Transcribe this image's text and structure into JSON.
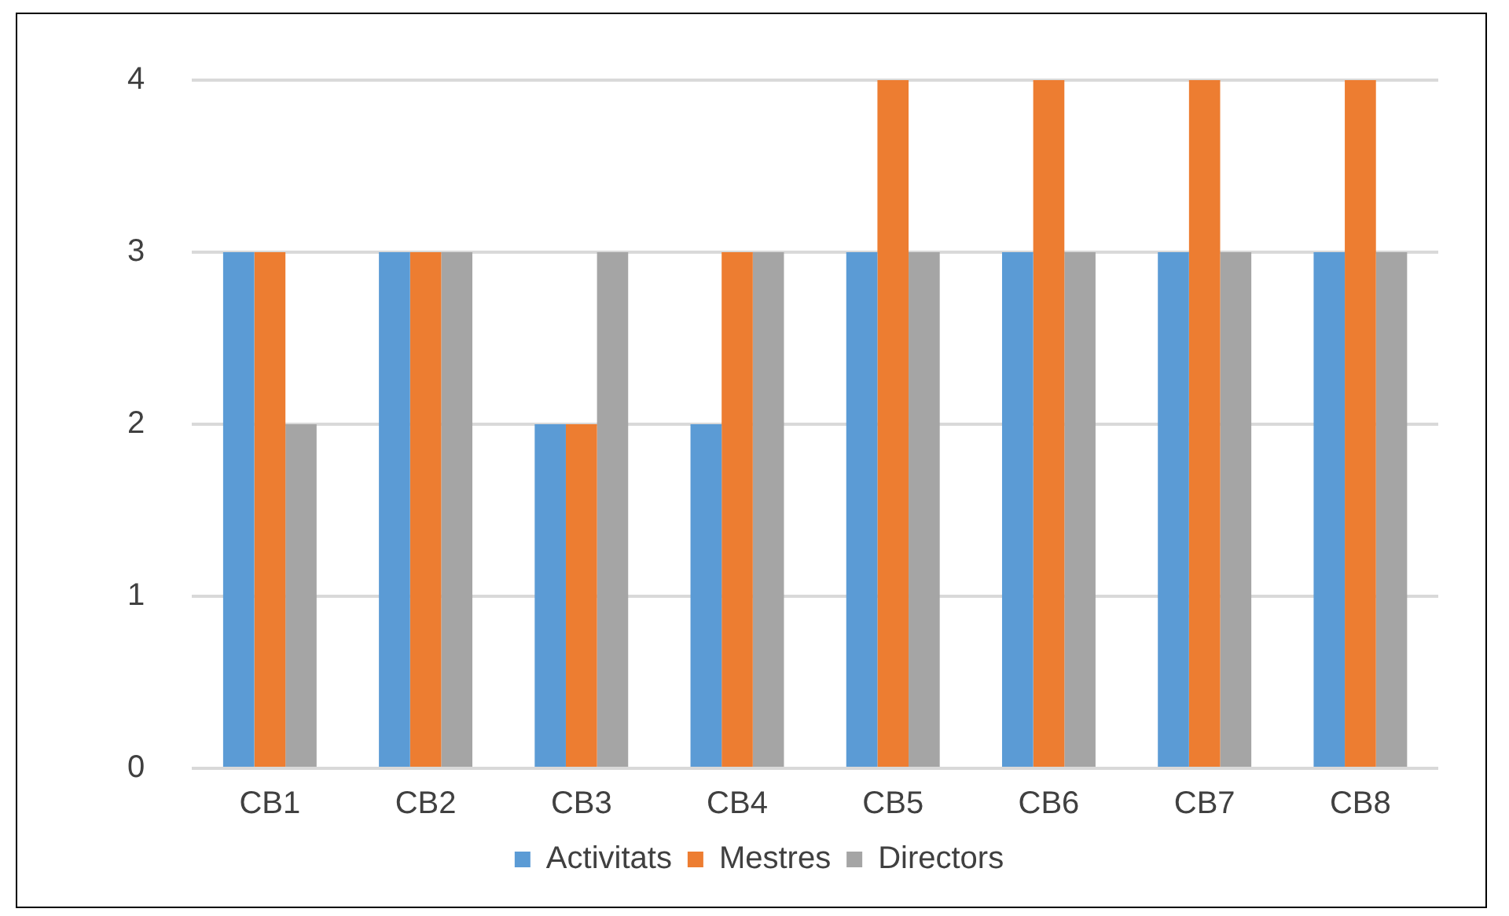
{
  "chart_data": {
    "type": "bar",
    "categories": [
      "CB1",
      "CB2",
      "CB3",
      "CB4",
      "CB5",
      "CB6",
      "CB7",
      "CB8"
    ],
    "series": [
      {
        "name": "Activitats",
        "color": "#5b9bd5",
        "values": [
          3,
          3,
          2,
          2,
          3,
          3,
          3,
          3
        ]
      },
      {
        "name": "Mestres",
        "color": "#ed7d31",
        "values": [
          3,
          3,
          2,
          3,
          4,
          4,
          4,
          4
        ]
      },
      {
        "name": "Directors",
        "color": "#a5a5a5",
        "values": [
          2,
          3,
          3,
          3,
          3,
          3,
          3,
          3
        ]
      }
    ],
    "ylim": [
      0,
      4
    ],
    "yticks": [
      0,
      1,
      2,
      3,
      4
    ],
    "grid": "y",
    "legend": "bottom"
  }
}
